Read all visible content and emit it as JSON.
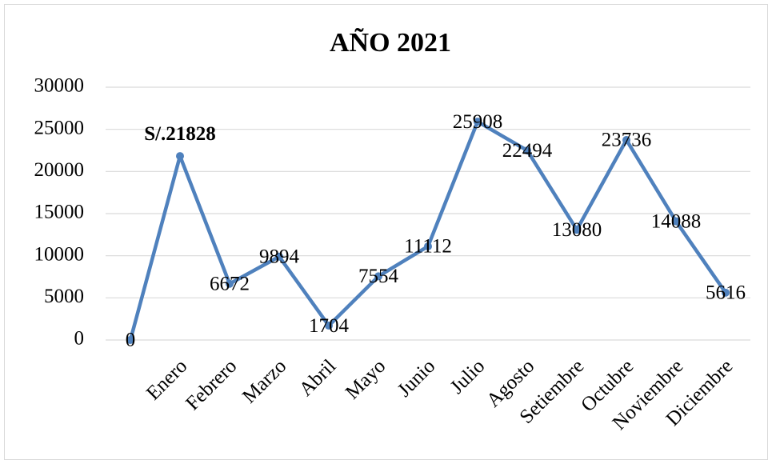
{
  "chart_data": {
    "type": "line",
    "title": "AÑO 2021",
    "categories": [
      null,
      "Enero",
      "Febrero",
      "Marzo",
      "Abril",
      "Mayo",
      "Junio",
      "Julio",
      "Agosto",
      "Setiembre",
      "Octubre",
      "Noviembre",
      "Diciembre"
    ],
    "values": [
      0,
      21828,
      6672,
      9894,
      1704,
      7554,
      11112,
      25908,
      22494,
      13080,
      23736,
      14088,
      5616
    ],
    "value_labels": [
      "0",
      "S/.21828",
      "6672",
      "9894",
      "1704",
      "7554",
      "11112",
      "25908",
      "22494",
      "13080",
      "23736",
      "14088",
      "5616"
    ],
    "color": "#4f81bd",
    "ylim": [
      0,
      30000
    ],
    "yticks": [
      0,
      5000,
      10000,
      15000,
      20000,
      25000,
      30000
    ],
    "grid": true
  }
}
